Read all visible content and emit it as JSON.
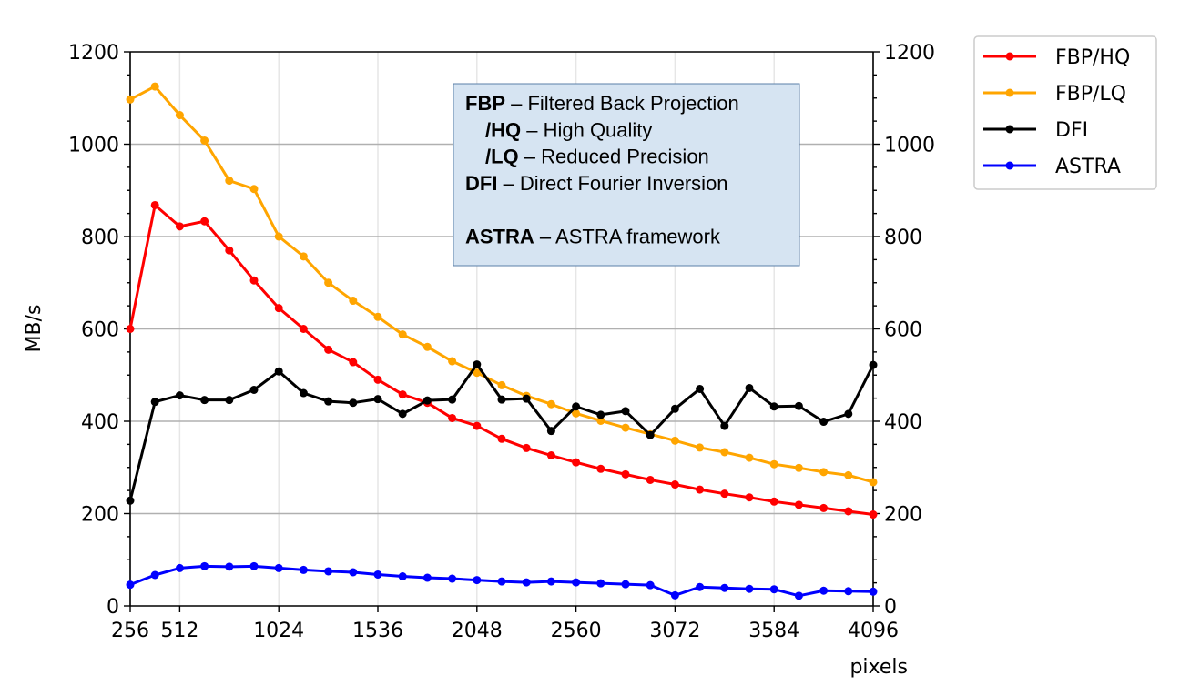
{
  "chart_data": {
    "type": "line",
    "title": "",
    "xlabel": "pixels",
    "ylabel": "MB/s",
    "xlim": [
      256,
      4096
    ],
    "ylim": [
      0,
      1200
    ],
    "x_ticks": [
      256,
      512,
      1024,
      1536,
      2048,
      2560,
      3072,
      3584,
      4096
    ],
    "y_ticks": [
      0,
      200,
      400,
      600,
      800,
      1000,
      1200
    ],
    "y_minor_step": 50,
    "grid": "on (horizontal major lines, light vertical lines)",
    "secondary_y_axis": "right, mirrored ticks",
    "legend_position": "outside top-right",
    "x": [
      256,
      384,
      512,
      640,
      768,
      896,
      1024,
      1152,
      1280,
      1408,
      1536,
      1664,
      1792,
      1920,
      2048,
      2176,
      2304,
      2432,
      2560,
      2688,
      2816,
      2944,
      3072,
      3200,
      3328,
      3456,
      3584,
      3712,
      3840,
      3968,
      4096
    ],
    "series": [
      {
        "name": "FBP/HQ",
        "color": "#ff0000",
        "values": [
          600,
          868,
          822,
          833,
          770,
          705,
          645,
          600,
          555,
          528,
          490,
          458,
          440,
          407,
          390,
          362,
          342,
          326,
          311,
          297,
          285,
          273,
          263,
          252,
          243,
          235,
          226,
          219,
          212,
          205,
          198
        ]
      },
      {
        "name": "FBP/LQ",
        "color": "#ffa500",
        "values": [
          1097,
          1125,
          1063,
          1008,
          921,
          903,
          800,
          757,
          700,
          661,
          626,
          588,
          561,
          530,
          505,
          478,
          455,
          437,
          417,
          401,
          386,
          372,
          358,
          343,
          333,
          321,
          307,
          299,
          290,
          283,
          268
        ]
      },
      {
        "name": "DFI",
        "color": "#000000",
        "values": [
          228,
          442,
          456,
          446,
          446,
          468,
          508,
          461,
          443,
          440,
          448,
          416,
          445,
          447,
          523,
          447,
          449,
          379,
          432,
          414,
          422,
          370,
          427,
          470,
          390,
          472,
          432,
          433,
          399,
          416,
          522
        ]
      },
      {
        "name": "ASTRA",
        "color": "#0000ff",
        "values": [
          46,
          67,
          82,
          86,
          85,
          86,
          82,
          78,
          75,
          73,
          68,
          64,
          61,
          59,
          56,
          53,
          51,
          53,
          51,
          49,
          47,
          45,
          23,
          41,
          39,
          37,
          36,
          22,
          33,
          32,
          31
        ]
      }
    ],
    "annotation": {
      "lines": [
        {
          "bold": "FBP",
          "rest": " – Filtered Back Projection",
          "indent": false
        },
        {
          "bold": "/HQ",
          "rest": " – High Quality",
          "indent": true
        },
        {
          "bold": "/LQ",
          "rest": " – Reduced Precision",
          "indent": true
        },
        {
          "bold": "DFI",
          "rest": " – Direct Fourier Inversion",
          "indent": false
        },
        {
          "bold": "",
          "rest": "",
          "indent": false
        },
        {
          "bold": "ASTRA",
          "rest": " – ASTRA framework",
          "indent": false
        }
      ],
      "background": "#d6e4f2",
      "border": "#5b7fa8"
    }
  }
}
